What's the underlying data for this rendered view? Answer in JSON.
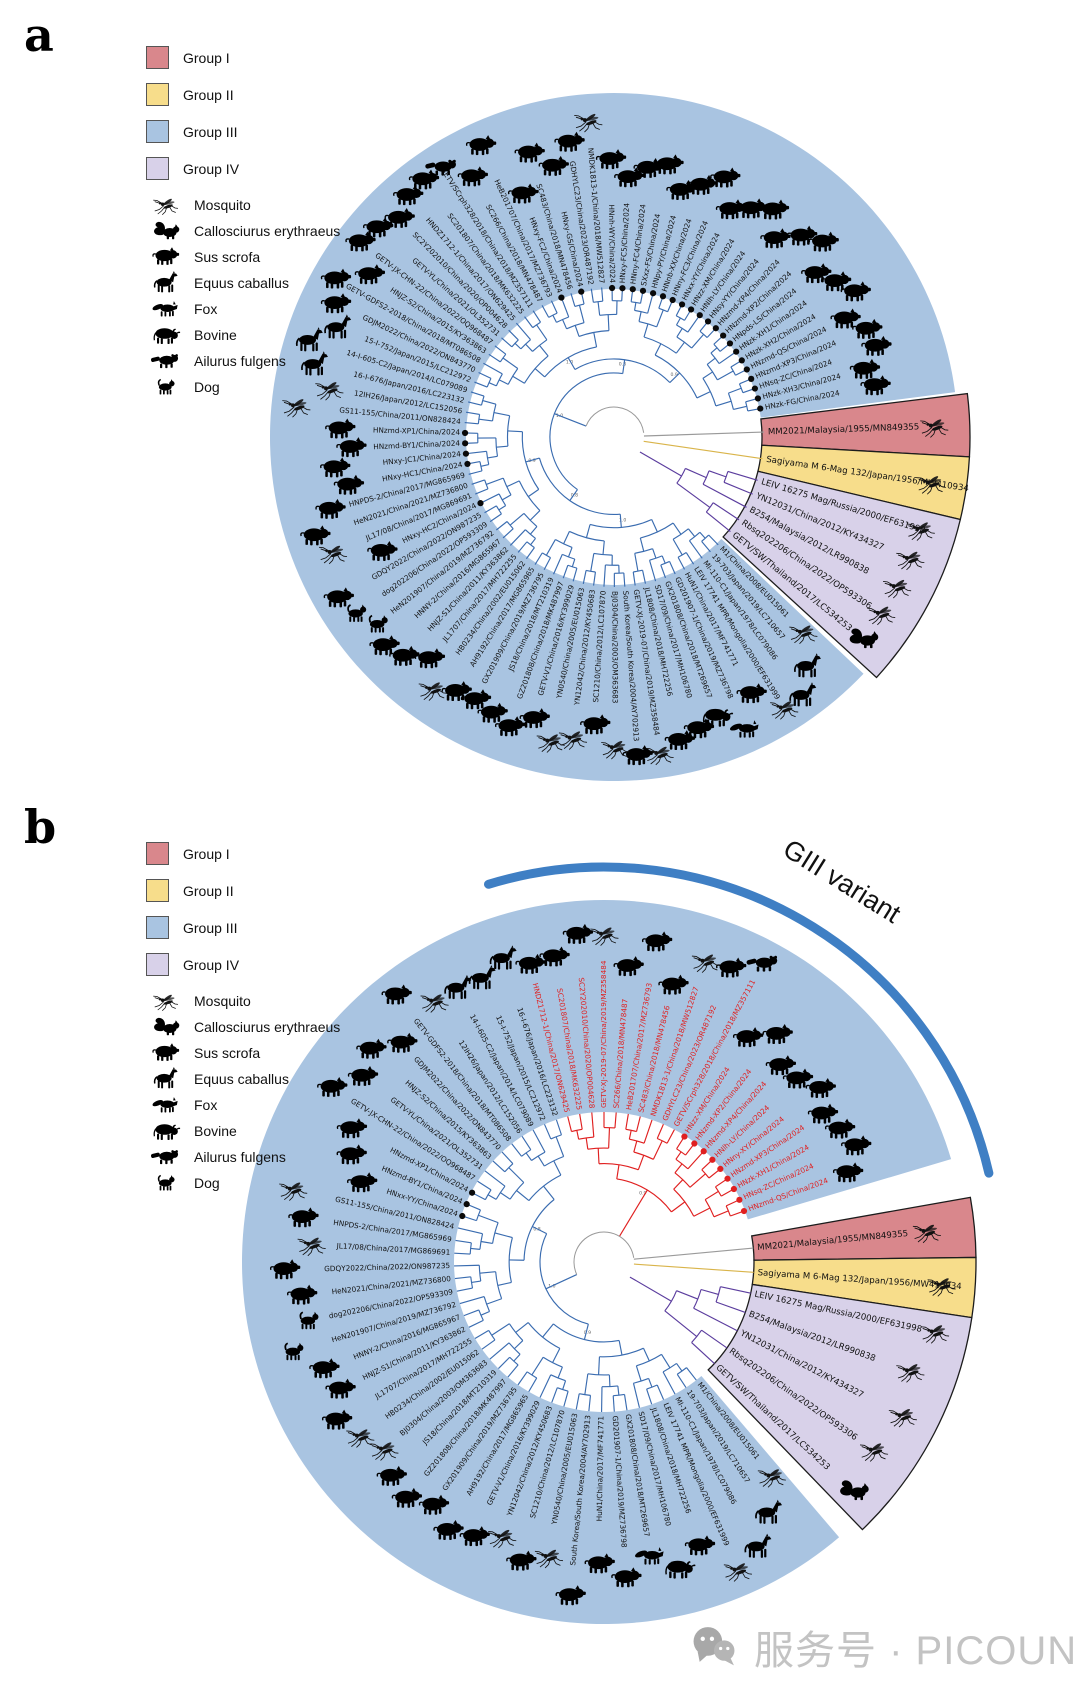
{
  "figure": {
    "type": "circular-phylogenetic-trees"
  },
  "colors": {
    "group1": "#d9878c",
    "group2": "#f7dd8b",
    "group3_bg": "#a9c4e1",
    "group4": "#d8d1e9",
    "branch_blue": "#3a6cb0",
    "branch_red": "#e02020",
    "branch_purple": "#5b3d9e",
    "branch_yellow": "#d9b44a",
    "branch_gray": "#9a9a9a",
    "variant_arc": "#3f7fc4",
    "dot_black": "#0a0a0a",
    "dot_red": "#e02020",
    "watermark_gray": "#c3c3c3"
  },
  "legend": {
    "groups": [
      {
        "label": "Group I",
        "color": "#d9878c"
      },
      {
        "label": "Group II",
        "color": "#f7dd8b"
      },
      {
        "label": "Group III",
        "color": "#a9c4e1"
      },
      {
        "label": "Group IV",
        "color": "#d8d1e9"
      }
    ],
    "hosts": [
      {
        "label": "Mosquito",
        "icon": "mosquito"
      },
      {
        "label": "Callosciurus erythraeus",
        "icon": "squirrel"
      },
      {
        "label": "Sus scrofa",
        "icon": "pig"
      },
      {
        "label": "Equus caballus",
        "icon": "horse"
      },
      {
        "label": "Fox",
        "icon": "fox"
      },
      {
        "label": "Bovine",
        "icon": "bovine"
      },
      {
        "label": "Ailurus fulgens",
        "icon": "red-panda"
      },
      {
        "label": "Dog",
        "icon": "dog"
      }
    ]
  },
  "support_values_sample": [
    "1.0",
    "0.9",
    "0.8"
  ],
  "panels": [
    {
      "id": "a",
      "label": "a",
      "wedge_taxa": {
        "group1": [
          {
            "n": "MM2021/Malaysia/1955/MN849355",
            "h": "mosquito"
          }
        ],
        "group2": [
          {
            "n": "Sagiyama M 6-Mag 132/Japan/1956/MW410934",
            "h": "mosquito"
          }
        ],
        "group4": [
          {
            "n": "LEIV 16275 Mag/Russia/2000/EF631998",
            "h": "mosquito"
          },
          {
            "n": "YN12031/China/2012/KY434327",
            "h": "mosquito"
          },
          {
            "n": "B254/Malaysia/2012/LR990838",
            "h": "mosquito"
          },
          {
            "n": "Rbsq202206/China/2022/OP593306",
            "h": "mosquito"
          },
          {
            "n": "GETV/SW/Thailand/2017/LC534253",
            "h": "squirrel"
          }
        ]
      },
      "taxa": [
        {
          "n": "M1/China/2008/EU015061",
          "h": "mosquito"
        },
        {
          "n": "19-703/Japan/2019/LC710657",
          "h": "horse"
        },
        {
          "n": "MI-110-C1/Japan/1978/LC079086",
          "h": "horse"
        },
        {
          "n": "LEIV 17741 MPR/Mongolia/2000/EF631999",
          "h": "mosquito"
        },
        {
          "n": "HuN1/China/2017/MF741771",
          "h": "pig"
        },
        {
          "n": "GD201907-1/China/2019/MZ736798",
          "h": "fox"
        },
        {
          "n": "GX201808/China/2018/MT269657",
          "h": "bovine"
        },
        {
          "n": "SD17/09/China/2017/MH106780",
          "h": "pig"
        },
        {
          "n": "JL1808/China/2018/MH722256",
          "h": "pig"
        },
        {
          "n": "GETV-XJ-2019-07/China/2019/MZ358484",
          "h": "mosquito"
        },
        {
          "n": "South Korea/South Korea/2004/AY702913",
          "h": "pig"
        },
        {
          "n": "BJ0304/China/2003/OM363683",
          "h": "mosquito"
        },
        {
          "n": "SC1210/China/2012/LC107870",
          "h": "pig"
        },
        {
          "n": "YN12042/China/2012/KY450683",
          "h": "mosquito"
        },
        {
          "n": "YN0540/China/2005/EU015063",
          "h": "mosquito"
        },
        {
          "n": "GETV-V1/China/2016/KY399029",
          "h": "pig"
        },
        {
          "n": "GZ201808/China/2018/MK487997",
          "h": "pig"
        },
        {
          "n": "JS18/China/2018/MT210319",
          "h": "pig"
        },
        {
          "n": "GX201909/China/2019/MZ736795",
          "h": "pig"
        },
        {
          "n": "AH9192/China/2017/MG865965",
          "h": "pig"
        },
        {
          "n": "HB0234/China/2002/EU015062",
          "h": "mosquito"
        },
        {
          "n": "JL1707/China/2017/MH722255",
          "h": "pig"
        },
        {
          "n": "HNJZ-S1/China/2011/KY363862",
          "h": "pig"
        },
        {
          "n": "HNNY-2/China/2016/MG865967",
          "h": "pig"
        },
        {
          "n": "HeN201907/China/2019/MZ736792",
          "h": "dog"
        },
        {
          "n": "dog202206/China/2022/OP593309",
          "h": "dog"
        },
        {
          "n": "GDQY2022/China/2022/ON987235",
          "h": "pig"
        },
        {
          "n": "HNxy-HC2/China/2024",
          "h": "pig",
          "d": 1
        },
        {
          "n": "JL17/08/China/2017/MG869691",
          "h": "mosquito"
        },
        {
          "n": "HeN2021/China/2021/MZ736800",
          "h": "pig"
        },
        {
          "n": "HNPDS-2/China/2017/MG865969",
          "h": "pig"
        },
        {
          "n": "HNxy-HC1/China/2024",
          "h": "pig",
          "d": 1
        },
        {
          "n": "HNxy-JC1/China/2024",
          "h": "pig",
          "d": 1
        },
        {
          "n": "HNzmd-BY1/China/2024",
          "h": "pig",
          "d": 1
        },
        {
          "n": "HNzmd-XP1/China/2024",
          "h": "pig",
          "d": 1
        },
        {
          "n": "GS11-155/China/2011/ON828424",
          "h": "mosquito"
        },
        {
          "n": "12IH26/Japan/2012/LC152056",
          "h": "mosquito"
        },
        {
          "n": "16-I-676/Japan/2016/LC223132",
          "h": "horse"
        },
        {
          "n": "14-I-605-C2/Japan/2014/LC079089",
          "h": "horse"
        },
        {
          "n": "15-I-752/Japan/2015/LC212972",
          "h": "horse"
        },
        {
          "n": "GDJM2022/China/2022/ON843770",
          "h": "pig"
        },
        {
          "n": "GETV-GDFS2-2018/China/2018/MT086508",
          "h": "pig"
        },
        {
          "n": "HNJZ-S2/China/2015/KY363863",
          "h": "pig"
        },
        {
          "n": "GETV-JX-CHN-22/China/2022/OQ968487",
          "h": "pig"
        },
        {
          "n": "GETV-YL/China/2021/OL352731",
          "h": "pig"
        },
        {
          "n": "SC2Y202010/China/2020/OP004628",
          "h": "pig"
        },
        {
          "n": "HNDZ1712-1/China/2017/ON629425",
          "h": "pig"
        },
        {
          "n": "SC201807/China/2018/MK632225",
          "h": "pig"
        },
        {
          "n": "GETV/SCrph328/2018/China/2018/MZ357111",
          "h": "red-panda"
        },
        {
          "n": "SC266/China/2018/MN478487",
          "h": "pig"
        },
        {
          "n": "HeB201707/China/2017/MZ736793",
          "h": "pig"
        },
        {
          "n": "HNxy-FC2/China/2024",
          "h": "pig",
          "d": 1
        },
        {
          "n": "SC483/China/2018/MN478456",
          "h": "pig"
        },
        {
          "n": "HNxy-GS/China/2024",
          "h": "pig",
          "d": 1
        },
        {
          "n": "GDHYLC23/China/2023/OR487192",
          "h": "pig"
        },
        {
          "n": "NMDK1813-1/China/2018/MW512827",
          "h": "mosquito"
        },
        {
          "n": "HNnh-WY/China/2024",
          "h": "pig",
          "d": 1
        },
        {
          "n": "HNxy-FC5/China/2024",
          "h": "pig",
          "d": 1
        },
        {
          "n": "HNny-FC4/China/2024",
          "h": "pig",
          "d": 1
        },
        {
          "n": "SXxz-FS/China/2024",
          "h": "pig",
          "d": 1
        },
        {
          "n": "HNpy-PY/China/2024",
          "h": "pig",
          "d": 1
        },
        {
          "n": "HNnb-XX/China/2024",
          "h": "pig",
          "d": 1
        },
        {
          "n": "HNny-FC3/China/2024",
          "h": "pig",
          "d": 1
        },
        {
          "n": "HNxx-YY/China/2024",
          "h": "pig",
          "d": 1
        },
        {
          "n": "HNzz-XM/China/2024",
          "h": "pig",
          "d": 1
        },
        {
          "n": "HNlh-LY/China/2024",
          "h": "pig",
          "d": 1
        },
        {
          "n": "HNsy-YY/China/2024",
          "h": "pig",
          "d": 1
        },
        {
          "n": "HNzmd-XP4/China/2024",
          "h": "pig",
          "d": 1
        },
        {
          "n": "HNzmd-XP2/China/2024",
          "h": "pig",
          "d": 1
        },
        {
          "n": "HNpds-LS/China/2024",
          "h": "pig",
          "d": 1
        },
        {
          "n": "HNzk-XH1/China/2024",
          "h": "pig",
          "d": 1
        },
        {
          "n": "HNzk-XH2/China/2024",
          "h": "pig",
          "d": 1
        },
        {
          "n": "HNzmd-QS/China/2024",
          "h": "pig",
          "d": 1
        },
        {
          "n": "HNzmd-XP3/China/2024",
          "h": "pig",
          "d": 1
        },
        {
          "n": "HNsq-ZC/China/2024",
          "h": "pig",
          "d": 1
        },
        {
          "n": "HNzk-XH3/China/2024",
          "h": "pig",
          "d": 1
        },
        {
          "n": "HNzk-FG/China/2024",
          "h": "pig",
          "d": 1
        }
      ]
    },
    {
      "id": "b",
      "label": "b",
      "giii_variant_label": "GIII variant",
      "wedge_taxa": {
        "group1": [
          {
            "n": "MM2021/Malaysia/1955/MN849355",
            "h": "mosquito"
          }
        ],
        "group2": [
          {
            "n": "Sagiyama M 6-Mag 132/Japan/1956/MW410934",
            "h": "mosquito"
          }
        ],
        "group4": [
          {
            "n": "LEIV 16275 Mag/Russia/2000/EF631998",
            "h": "mosquito"
          },
          {
            "n": "B254/Malaysia/2012/LR990838",
            "h": "mosquito"
          },
          {
            "n": "YN12031/China/2012/KY434327",
            "h": "mosquito"
          },
          {
            "n": "Rbsq202206/China/2022/OP593306",
            "h": "mosquito"
          },
          {
            "n": "GETV/SW/Thailand/2017/LC534253",
            "h": "squirrel"
          }
        ]
      },
      "taxa": [
        {
          "n": "M1/China/2008/EU015061",
          "h": "mosquito"
        },
        {
          "n": "19-703/Japan/2019/LC710657",
          "h": "horse"
        },
        {
          "n": "MI-110-C1/Japan/1978/LC079086",
          "h": "horse"
        },
        {
          "n": "LEIV 17741 MPR/Mongolia/2000/EF631999",
          "h": "mosquito"
        },
        {
          "n": "JL1808/China/2018/MH722256",
          "h": "pig"
        },
        {
          "n": "SD17/09/China/2017/MH106780",
          "h": "bovine"
        },
        {
          "n": "GX201808/China/2018/MT269657",
          "h": "fox"
        },
        {
          "n": "GD201907-1/China/2019/MZ736798",
          "h": "pig"
        },
        {
          "n": "HuN1/China/2017/MF741771",
          "h": "pig"
        },
        {
          "n": "South Korea/South Korea/2004/AY702913",
          "h": "pig"
        },
        {
          "n": "YN0540/China/2005/EU015063",
          "h": "mosquito"
        },
        {
          "n": "SC1210/China/2012/LC107870",
          "h": "pig"
        },
        {
          "n": "YN12042/China/2012/KY450683",
          "h": "mosquito"
        },
        {
          "n": "GETV-V1/China/2016/KY399029",
          "h": "pig"
        },
        {
          "n": "AH9192/China/2017/MG865965",
          "h": "pig"
        },
        {
          "n": "GX201909/China/2019/MZ736795",
          "h": "pig"
        },
        {
          "n": "GZ201808/China/2018/MK487997",
          "h": "pig"
        },
        {
          "n": "JS18/China/2018/MT210319",
          "h": "pig"
        },
        {
          "n": "BJ0304/China/2003/OM363683",
          "h": "mosquito"
        },
        {
          "n": "HB0234/China/2002/EU015062",
          "h": "mosquito"
        },
        {
          "n": "JL1707/China/2017/MH722255",
          "h": "pig"
        },
        {
          "n": "HNJZ-S1/China/2011/KY363862",
          "h": "pig"
        },
        {
          "n": "HNNY-2/China/2016/MG865967",
          "h": "pig"
        },
        {
          "n": "HeN201907/China/2019/MZ736792",
          "h": "dog"
        },
        {
          "n": "dog202206/China/2022/OP593309",
          "h": "dog"
        },
        {
          "n": "HeN2021/China/2021/MZ736800",
          "h": "pig"
        },
        {
          "n": "GDQY2022/China/2022/ON987235",
          "h": "pig"
        },
        {
          "n": "JL17/08/China/2017/MG869691",
          "h": "mosquito"
        },
        {
          "n": "HNPDS-2/China/2017/MG865969",
          "h": "pig"
        },
        {
          "n": "GS11-155/China/2011/ON828424",
          "h": "mosquito"
        },
        {
          "n": "HNxx-YY/China/2024",
          "h": "pig",
          "d": 1
        },
        {
          "n": "HNzmd-BY1/China/2024",
          "h": "pig",
          "d": 1
        },
        {
          "n": "HNzmd-XP1/China/2024",
          "h": "pig",
          "d": 1
        },
        {
          "n": "GETV-JX-CHN-22/China/2022/OQ968487",
          "h": "pig"
        },
        {
          "n": "GETV-YL/China/2021/OL352731",
          "h": "pig"
        },
        {
          "n": "HNJZ-S2/China/2015/KY363863",
          "h": "pig"
        },
        {
          "n": "GDJM2022/China/2022/ON843770",
          "h": "pig"
        },
        {
          "n": "GETV-GDFS2-2018/China/2018/MT086508",
          "h": "pig"
        },
        {
          "n": "12IH26/Japan/2012/LC152056",
          "h": "mosquito"
        },
        {
          "n": "14-I-605-C2/Japan/2014/LC079089",
          "h": "horse"
        },
        {
          "n": "15-I-752/Japan/2015/LC212972",
          "h": "horse"
        },
        {
          "n": "16-I-676/Japan/2016/LC223132",
          "h": "horse"
        }
      ],
      "variant_taxa": [
        {
          "n": "HNDZ1712-1/China/2017/ON629425",
          "h": "pig"
        },
        {
          "n": "SC201807/China/2018/MK632225",
          "h": "pig"
        },
        {
          "n": "SC2Y202010/China/2020/OP004628",
          "h": "pig"
        },
        {
          "n": "GETV-XJ-2019-07/China/2019/MZ358484",
          "h": "mosquito"
        },
        {
          "n": "SC266/China/2018/MN478487",
          "h": "pig"
        },
        {
          "n": "HeB201707/China/2017/MZ736793",
          "h": "pig"
        },
        {
          "n": "SC483/China/2018/MN478456",
          "h": "pig"
        },
        {
          "n": "NMDK1813-1/China/2018/MW512827",
          "h": "mosquito"
        },
        {
          "n": "GDHYLC23/China/2023/OR487192",
          "h": "pig"
        },
        {
          "n": "GETV/SCrph328/2018/China/2018/MZ357111",
          "h": "red-panda"
        },
        {
          "n": "HNzz-XM/China/2024",
          "h": "pig",
          "d": 1
        },
        {
          "n": "HNzmd-XP2/China/2024",
          "h": "pig",
          "d": 1
        },
        {
          "n": "HNzmd-XP4/China/2024",
          "h": "pig",
          "d": 1
        },
        {
          "n": "HNlh-LY/China/2024",
          "h": "pig",
          "d": 1
        },
        {
          "n": "HNny-XY/China/2024",
          "h": "pig",
          "d": 1
        },
        {
          "n": "HNzmd-XP3/China/2024",
          "h": "pig",
          "d": 1
        },
        {
          "n": "HNzk-XH1/China/2024",
          "h": "pig",
          "d": 1
        },
        {
          "n": "HNsq-ZC/China/2024",
          "h": "pig",
          "d": 1
        },
        {
          "n": "HNzmd-QS/China/2024",
          "h": "pig",
          "d": 1
        }
      ]
    }
  ],
  "watermark": {
    "text": "服务号 · PICOUNI",
    "icon": "wechat-service-account"
  }
}
